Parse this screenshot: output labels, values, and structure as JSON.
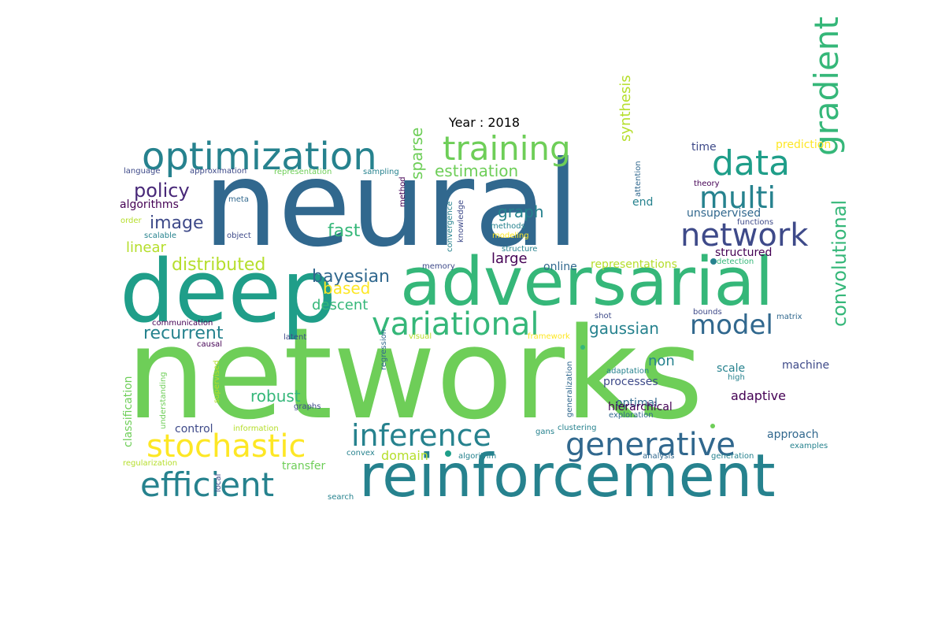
{
  "title": "Year : 2018",
  "palette": [
    "#440154",
    "#482878",
    "#3e4a89",
    "#31688e",
    "#26828e",
    "#1f9e89",
    "#35b779",
    "#6ece58",
    "#b5de2b",
    "#fde725"
  ],
  "words": [
    {
      "text": "neural",
      "color": "#31688e"
    },
    {
      "text": "networks",
      "color": "#6ece58"
    },
    {
      "text": "deep",
      "color": "#1f9e89"
    },
    {
      "text": "adversarial",
      "color": "#35b779"
    },
    {
      "text": "reinforcement",
      "color": "#26828e"
    },
    {
      "text": "optimization",
      "color": "#26828e"
    },
    {
      "text": "training",
      "color": "#6ece58"
    },
    {
      "text": "data",
      "color": "#1f9e89"
    },
    {
      "text": "multi",
      "color": "#26828e"
    },
    {
      "text": "network",
      "color": "#3e4a89"
    },
    {
      "text": "gradient",
      "color": "#35b779"
    },
    {
      "text": "variational",
      "color": "#35b779"
    },
    {
      "text": "model",
      "color": "#31688e"
    },
    {
      "text": "generative",
      "color": "#31688e"
    },
    {
      "text": "inference",
      "color": "#26828e"
    },
    {
      "text": "stochastic",
      "color": "#fde725"
    },
    {
      "text": "efficient",
      "color": "#26828e"
    },
    {
      "text": "convolutional",
      "color": "#35b779"
    },
    {
      "text": "policy",
      "color": "#482878"
    },
    {
      "text": "image",
      "color": "#3e4a89"
    },
    {
      "text": "estimation",
      "color": "#6ece58"
    },
    {
      "text": "graph",
      "color": "#26828e"
    },
    {
      "text": "fast",
      "color": "#35b779"
    },
    {
      "text": "sparse",
      "color": "#6ece58"
    },
    {
      "text": "synthesis",
      "color": "#b5de2b"
    },
    {
      "text": "distributed",
      "color": "#b5de2b"
    },
    {
      "text": "bayesian",
      "color": "#31688e"
    },
    {
      "text": "recurrent",
      "color": "#26828e"
    },
    {
      "text": "based",
      "color": "#fde725"
    },
    {
      "text": "descent",
      "color": "#35b779"
    },
    {
      "text": "gaussian",
      "color": "#26828e"
    },
    {
      "text": "robust",
      "color": "#35b779"
    },
    {
      "text": "linear",
      "color": "#b5de2b"
    },
    {
      "text": "large",
      "color": "#440154"
    },
    {
      "text": "online",
      "color": "#31688e"
    },
    {
      "text": "representations",
      "color": "#b5de2b"
    },
    {
      "text": "structured",
      "color": "#440154"
    },
    {
      "text": "unsupervised",
      "color": "#31688e"
    },
    {
      "text": "end",
      "color": "#26828e"
    },
    {
      "text": "algorithms",
      "color": "#440154"
    },
    {
      "text": "time",
      "color": "#3e4a89"
    },
    {
      "text": "prediction",
      "color": "#fde725"
    },
    {
      "text": "non",
      "color": "#26828e"
    },
    {
      "text": "scale",
      "color": "#26828e"
    },
    {
      "text": "machine",
      "color": "#3e4a89"
    },
    {
      "text": "adaptive",
      "color": "#440154"
    },
    {
      "text": "processes",
      "color": "#3e4a89"
    },
    {
      "text": "optimal",
      "color": "#31688e"
    },
    {
      "text": "hierarchical",
      "color": "#440154"
    },
    {
      "text": "control",
      "color": "#3e4a89"
    },
    {
      "text": "approach",
      "color": "#31688e"
    },
    {
      "text": "domain",
      "color": "#b5de2b"
    },
    {
      "text": "transfer",
      "color": "#6ece58"
    },
    {
      "text": "classification",
      "color": "#6ece58"
    },
    {
      "text": "language",
      "color": "#3e4a89"
    },
    {
      "text": "approximation",
      "color": "#3e4a89"
    },
    {
      "text": "representation",
      "color": "#6ece58"
    },
    {
      "text": "sampling",
      "color": "#26828e"
    },
    {
      "text": "meta",
      "color": "#31688e"
    },
    {
      "text": "method",
      "color": "#440154"
    },
    {
      "text": "convergence",
      "color": "#26828e"
    },
    {
      "text": "knowledge",
      "color": "#3e4a89"
    },
    {
      "text": "attention",
      "color": "#31688e"
    },
    {
      "text": "theory",
      "color": "#440154"
    },
    {
      "text": "order",
      "color": "#b5de2b"
    },
    {
      "text": "scalable",
      "color": "#26828e"
    },
    {
      "text": "object",
      "color": "#3e4a89"
    },
    {
      "text": "methods",
      "color": "#26828e"
    },
    {
      "text": "modeling",
      "color": "#fde725"
    },
    {
      "text": "structure",
      "color": "#26828e"
    },
    {
      "text": "functions",
      "color": "#3e4a89"
    },
    {
      "text": "memory",
      "color": "#3e4a89"
    },
    {
      "text": "detection",
      "color": "#35b779"
    },
    {
      "text": "communication",
      "color": "#440154"
    },
    {
      "text": "latent",
      "color": "#3e4a89"
    },
    {
      "text": "causal",
      "color": "#440154"
    },
    {
      "text": "visual",
      "color": "#b5de2b"
    },
    {
      "text": "framework",
      "color": "#fde725"
    },
    {
      "text": "shot",
      "color": "#3e4a89"
    },
    {
      "text": "bounds",
      "color": "#3e4a89"
    },
    {
      "text": "matrix",
      "color": "#31688e"
    },
    {
      "text": "understanding",
      "color": "#6ece58"
    },
    {
      "text": "supervised",
      "color": "#b5de2b"
    },
    {
      "text": "regression",
      "color": "#31688e"
    },
    {
      "text": "generalization",
      "color": "#31688e"
    },
    {
      "text": "adaptation",
      "color": "#26828e"
    },
    {
      "text": "high",
      "color": "#26828e"
    },
    {
      "text": "graphs",
      "color": "#3e4a89"
    },
    {
      "text": "exploration",
      "color": "#31688e"
    },
    {
      "text": "information",
      "color": "#b5de2b"
    },
    {
      "text": "gans",
      "color": "#26828e"
    },
    {
      "text": "clustering",
      "color": "#26828e"
    },
    {
      "text": "regularization",
      "color": "#b5de2b"
    },
    {
      "text": "convex",
      "color": "#26828e"
    },
    {
      "text": "algorithm",
      "color": "#26828e"
    },
    {
      "text": "analysis",
      "color": "#31688e"
    },
    {
      "text": "generation",
      "color": "#26828e"
    },
    {
      "text": "examples",
      "color": "#26828e"
    },
    {
      "text": "local",
      "color": "#3e4a89"
    },
    {
      "text": "search",
      "color": "#26828e"
    }
  ]
}
